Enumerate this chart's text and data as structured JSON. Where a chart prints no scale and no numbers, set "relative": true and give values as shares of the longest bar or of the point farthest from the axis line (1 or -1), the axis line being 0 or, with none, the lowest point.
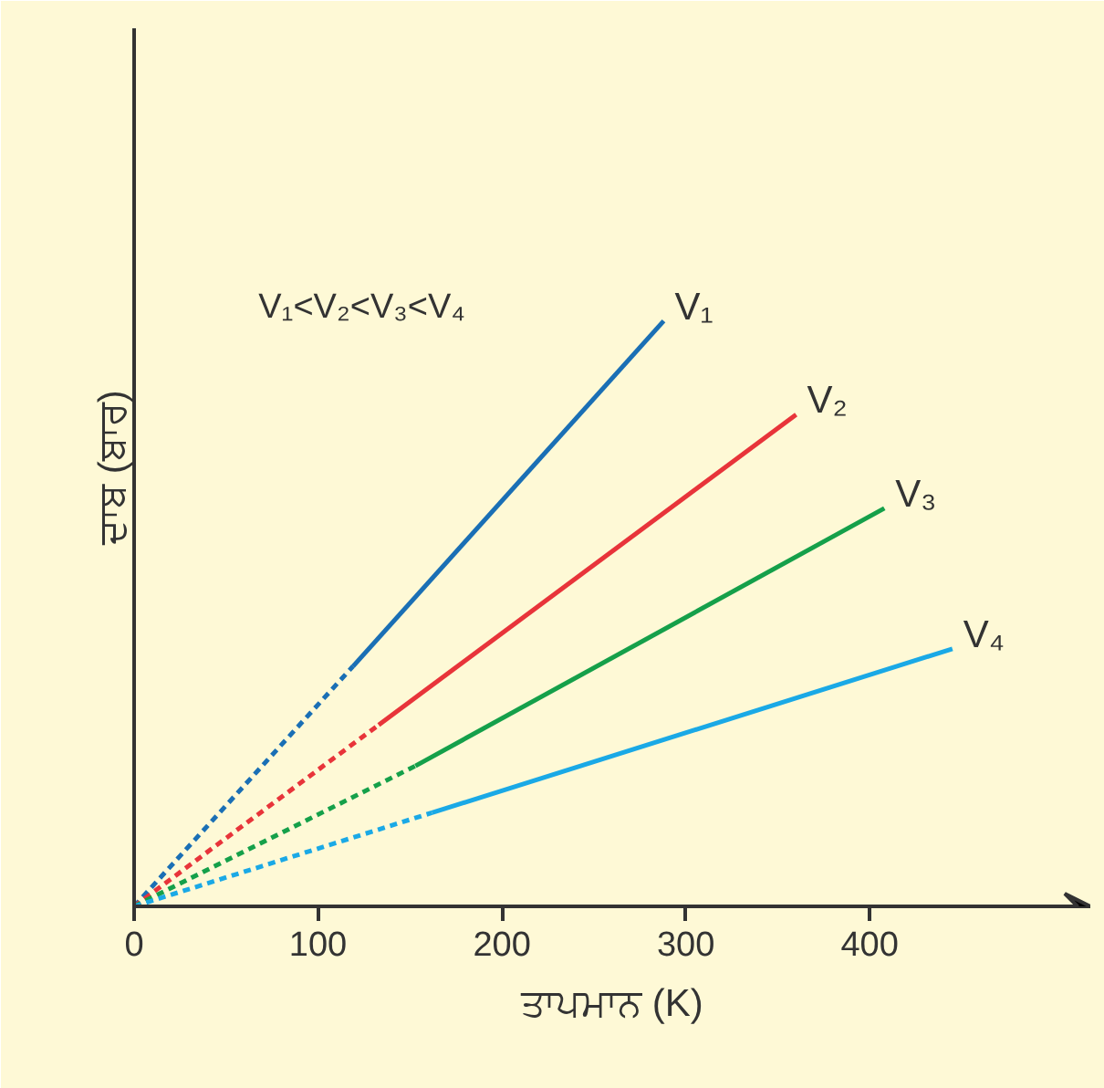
{
  "chart_data": {
    "type": "line",
    "relative": true,
    "xlabel": "ਤਾਪਮਾਨ (K)",
    "ylabel": "ਦਾਬ (ਬਾਰ)",
    "annotations": [
      "V₁<V₂<V₃<V₄"
    ],
    "xlim": [
      0,
      520
    ],
    "xticks": [
      0,
      100,
      200,
      300,
      400
    ],
    "grid": false,
    "marker": "none",
    "series": [
      {
        "color": "#1a6fb5",
        "line_style": "dashed",
        "x": [
          0,
          119
        ],
        "values": [
          0,
          0.41
        ]
      },
      {
        "name": "V₁",
        "color": "#1a6fb5",
        "line_style": "solid",
        "x": [
          119,
          288
        ],
        "values": [
          0.41,
          1.0
        ]
      },
      {
        "color": "#e8343a",
        "line_style": "dashed",
        "x": [
          0,
          133
        ],
        "values": [
          0,
          0.31
        ]
      },
      {
        "name": "V₂",
        "color": "#e8343a",
        "line_style": "solid",
        "x": [
          133,
          360
        ],
        "values": [
          0.31,
          0.84
        ]
      },
      {
        "color": "#15a04a",
        "line_style": "dashed",
        "x": [
          0,
          153
        ],
        "values": [
          0,
          0.24
        ]
      },
      {
        "name": "V₃",
        "color": "#15a04a",
        "line_style": "solid",
        "x": [
          153,
          408
        ],
        "values": [
          0.24,
          0.68
        ]
      },
      {
        "color": "#1aa9e6",
        "line_style": "dashed",
        "x": [
          0,
          162
        ],
        "values": [
          0,
          0.16
        ]
      },
      {
        "name": "V₄",
        "color": "#1aa9e6",
        "line_style": "solid",
        "x": [
          162,
          445
        ],
        "values": [
          0.16,
          0.44
        ]
      }
    ]
  }
}
